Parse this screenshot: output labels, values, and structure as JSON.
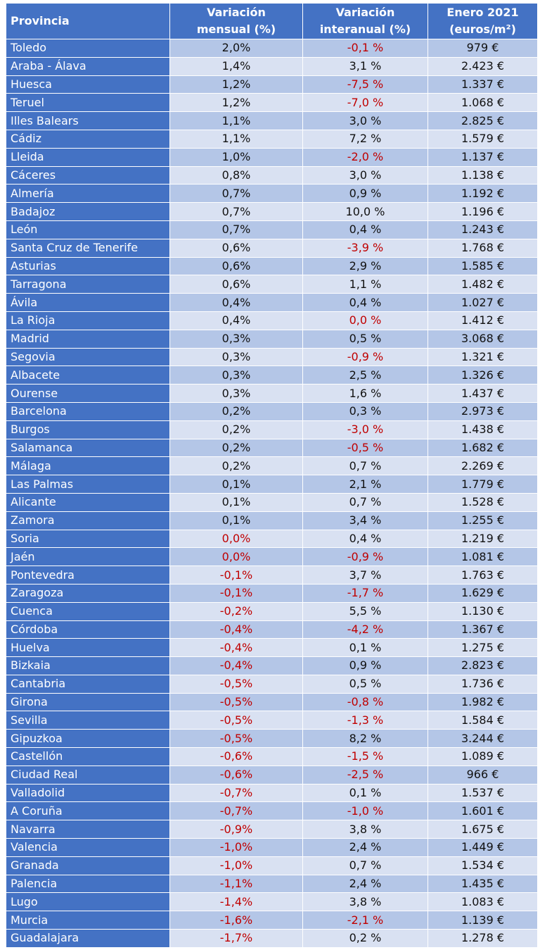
{
  "headers": {
    "provincia": "Provincia",
    "mensual": [
      "Variación",
      "mensual (%)"
    ],
    "interanual": [
      "Variación",
      "interanual (%)"
    ],
    "precio": [
      "Enero 2021",
      "(euros/m²)"
    ]
  },
  "colors": {
    "header_bg": "#4472c4",
    "row_dark": "#b4c6e7",
    "row_light": "#d9e1f2",
    "negative_text": "#c00000"
  },
  "rows": [
    {
      "provincia": "Toledo",
      "mensual": "2,0%",
      "interanual": "-0,1 %",
      "precio": "979 €"
    },
    {
      "provincia": "Araba - Álava",
      "mensual": "1,4%",
      "interanual": "3,1 %",
      "precio": "2.423 €"
    },
    {
      "provincia": "Huesca",
      "mensual": "1,2%",
      "interanual": "-7,5 %",
      "precio": "1.337 €"
    },
    {
      "provincia": "Teruel",
      "mensual": "1,2%",
      "interanual": "-7,0 %",
      "precio": "1.068 €"
    },
    {
      "provincia": "Illes Balears",
      "mensual": "1,1%",
      "interanual": "3,0 %",
      "precio": "2.825 €"
    },
    {
      "provincia": "Cádiz",
      "mensual": "1,1%",
      "interanual": "7,2 %",
      "precio": "1.579 €"
    },
    {
      "provincia": "Lleida",
      "mensual": "1,0%",
      "interanual": "-2,0 %",
      "precio": "1.137 €"
    },
    {
      "provincia": "Cáceres",
      "mensual": "0,8%",
      "interanual": "3,0 %",
      "precio": "1.138 €"
    },
    {
      "provincia": "Almería",
      "mensual": "0,7%",
      "interanual": "0,9 %",
      "precio": "1.192 €"
    },
    {
      "provincia": "Badajoz",
      "mensual": "0,7%",
      "interanual": "10,0 %",
      "precio": "1.196 €"
    },
    {
      "provincia": "León",
      "mensual": "0,7%",
      "interanual": "0,4 %",
      "precio": "1.243 €"
    },
    {
      "provincia": "Santa Cruz de Tenerife",
      "mensual": "0,6%",
      "interanual": "-3,9 %",
      "precio": "1.768 €"
    },
    {
      "provincia": "Asturias",
      "mensual": "0,6%",
      "interanual": "2,9 %",
      "precio": "1.585 €"
    },
    {
      "provincia": "Tarragona",
      "mensual": "0,6%",
      "interanual": "1,1 %",
      "precio": "1.482 €"
    },
    {
      "provincia": "Ávila",
      "mensual": "0,4%",
      "interanual": "0,4 %",
      "precio": "1.027 €"
    },
    {
      "provincia": "La Rioja",
      "mensual": "0,4%",
      "interanual": "0,0 %",
      "precio": "1.412 €"
    },
    {
      "provincia": "Madrid",
      "mensual": "0,3%",
      "interanual": "0,5 %",
      "precio": "3.068 €"
    },
    {
      "provincia": "Segovia",
      "mensual": "0,3%",
      "interanual": "-0,9 %",
      "precio": "1.321 €"
    },
    {
      "provincia": "Albacete",
      "mensual": "0,3%",
      "interanual": "2,5 %",
      "precio": "1.326 €"
    },
    {
      "provincia": "Ourense",
      "mensual": "0,3%",
      "interanual": "1,6 %",
      "precio": "1.437 €"
    },
    {
      "provincia": "Barcelona",
      "mensual": "0,2%",
      "interanual": "0,3 %",
      "precio": "2.973 €"
    },
    {
      "provincia": "Burgos",
      "mensual": "0,2%",
      "interanual": "-3,0 %",
      "precio": "1.438 €"
    },
    {
      "provincia": "Salamanca",
      "mensual": "0,2%",
      "interanual": "-0,5 %",
      "precio": "1.682 €"
    },
    {
      "provincia": "Málaga",
      "mensual": "0,2%",
      "interanual": "0,7 %",
      "precio": "2.269 €"
    },
    {
      "provincia": "Las Palmas",
      "mensual": "0,1%",
      "interanual": "2,1 %",
      "precio": "1.779 €"
    },
    {
      "provincia": "Alicante",
      "mensual": "0,1%",
      "interanual": "0,7 %",
      "precio": "1.528 €"
    },
    {
      "provincia": "Zamora",
      "mensual": "0,1%",
      "interanual": "3,4 %",
      "precio": "1.255 €"
    },
    {
      "provincia": "Soria",
      "mensual": "0,0%",
      "interanual": "0,4 %",
      "precio": "1.219 €"
    },
    {
      "provincia": "Jaén",
      "mensual": "0,0%",
      "interanual": "-0,9 %",
      "precio": "1.081 €"
    },
    {
      "provincia": "Pontevedra",
      "mensual": "-0,1%",
      "interanual": "3,7 %",
      "precio": "1.763 €"
    },
    {
      "provincia": "Zaragoza",
      "mensual": "-0,1%",
      "interanual": "-1,7 %",
      "precio": "1.629 €"
    },
    {
      "provincia": "Cuenca",
      "mensual": "-0,2%",
      "interanual": "5,5 %",
      "precio": "1.130 €"
    },
    {
      "provincia": "Córdoba",
      "mensual": "-0,4%",
      "interanual": "-4,2 %",
      "precio": "1.367 €"
    },
    {
      "provincia": "Huelva",
      "mensual": "-0,4%",
      "interanual": "0,1 %",
      "precio": "1.275 €"
    },
    {
      "provincia": "Bizkaia",
      "mensual": "-0,4%",
      "interanual": "0,9 %",
      "precio": "2.823 €"
    },
    {
      "provincia": "Cantabria",
      "mensual": "-0,5%",
      "interanual": "0,5 %",
      "precio": "1.736 €"
    },
    {
      "provincia": "Girona",
      "mensual": "-0,5%",
      "interanual": "-0,8 %",
      "precio": "1.982 €"
    },
    {
      "provincia": "Sevilla",
      "mensual": "-0,5%",
      "interanual": "-1,3 %",
      "precio": "1.584 €"
    },
    {
      "provincia": "Gipuzkoa",
      "mensual": "-0,5%",
      "interanual": "8,2 %",
      "precio": "3.244 €"
    },
    {
      "provincia": "Castellón",
      "mensual": "-0,6%",
      "interanual": "-1,5 %",
      "precio": "1.089 €"
    },
    {
      "provincia": "Ciudad Real",
      "mensual": "-0,6%",
      "interanual": "-2,5 %",
      "precio": "966 €"
    },
    {
      "provincia": "Valladolid",
      "mensual": "-0,7%",
      "interanual": "0,1 %",
      "precio": "1.537 €"
    },
    {
      "provincia": "A Coruña",
      "mensual": "-0,7%",
      "interanual": "-1,0 %",
      "precio": "1.601 €"
    },
    {
      "provincia": "Navarra",
      "mensual": "-0,9%",
      "interanual": "3,8 %",
      "precio": "1.675 €"
    },
    {
      "provincia": "Valencia",
      "mensual": "-1,0%",
      "interanual": "2,4 %",
      "precio": "1.449 €"
    },
    {
      "provincia": "Granada",
      "mensual": "-1,0%",
      "interanual": "0,7 %",
      "precio": "1.534 €"
    },
    {
      "provincia": "Palencia",
      "mensual": "-1,1%",
      "interanual": "2,4 %",
      "precio": "1.435 €"
    },
    {
      "provincia": "Lugo",
      "mensual": "-1,4%",
      "interanual": "3,8 %",
      "precio": "1.083 €"
    },
    {
      "provincia": "Murcia",
      "mensual": "-1,6%",
      "interanual": "-2,1 %",
      "precio": "1.139 €"
    },
    {
      "provincia": "Guadalajara",
      "mensual": "-1,7%",
      "interanual": "0,2 %",
      "precio": "1.278 €"
    }
  ]
}
